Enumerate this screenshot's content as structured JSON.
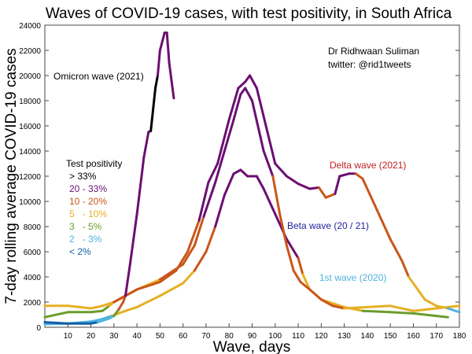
{
  "chart_data": {
    "type": "line",
    "title": "Waves of COVID-19 cases, with test positivity, in South Africa",
    "xlabel": "Wave, days",
    "ylabel": "7-day rolling average COVID-19 cases",
    "xlim": [
      0,
      180
    ],
    "ylim": [
      0,
      24000
    ],
    "xticks": [
      10,
      20,
      30,
      40,
      50,
      60,
      70,
      80,
      90,
      100,
      110,
      120,
      130,
      140,
      150,
      160,
      170,
      180
    ],
    "yticks": [
      0,
      2000,
      4000,
      6000,
      8000,
      10000,
      12000,
      14000,
      16000,
      18000,
      20000,
      22000,
      24000
    ],
    "grid": false,
    "credit": [
      "Dr Ridhwaan Suliman",
      "twitter: @rid1tweets"
    ],
    "legend": {
      "title": "Test positivity",
      "placement": "left",
      "entries": [
        {
          "label": "> 33%",
          "color": "#000000"
        },
        {
          "label": "20 - 33%",
          "color": "#6b0f72"
        },
        {
          "label": "10 - 20%",
          "color": "#c9561a"
        },
        {
          "label": "5   - 10%",
          "color": "#e6b024"
        },
        {
          "label": "3   - 5%",
          "color": "#6b9c2c"
        },
        {
          "label": "2   - 3%",
          "color": "#4fb3de"
        },
        {
          "label": "< 2%",
          "color": "#135fa6"
        }
      ]
    },
    "series": [
      {
        "name": "1st wave (2020)",
        "label_color": "#4fb3de",
        "points": [
          [
            0,
            250,
            5
          ],
          [
            10,
            300,
            5
          ],
          [
            20,
            450,
            5
          ],
          [
            25,
            650,
            5
          ],
          [
            29,
            900,
            3
          ],
          [
            35,
            1300,
            3
          ],
          [
            40,
            1600,
            3
          ],
          [
            50,
            2500,
            3
          ],
          [
            60,
            3500,
            3
          ],
          [
            65,
            4500,
            2
          ],
          [
            70,
            6000,
            2
          ],
          [
            74,
            8000,
            1
          ],
          [
            78,
            10500,
            1
          ],
          [
            82,
            12200,
            1
          ],
          [
            85,
            12500,
            1
          ],
          [
            88,
            12000,
            1
          ],
          [
            92,
            12000,
            1
          ],
          [
            95,
            11000,
            1
          ],
          [
            100,
            9000,
            1
          ],
          [
            105,
            7000,
            1
          ],
          [
            110,
            5500,
            2
          ],
          [
            112,
            4200,
            3
          ],
          [
            115,
            3000,
            3
          ],
          [
            120,
            2200,
            3
          ],
          [
            130,
            1600,
            3
          ],
          [
            138,
            1300,
            4
          ],
          [
            150,
            1200,
            4
          ],
          [
            160,
            1100,
            4
          ],
          [
            170,
            900,
            4
          ],
          [
            175,
            800,
            4
          ]
        ]
      },
      {
        "name": "Beta wave (20 / 21)",
        "label_color": "#1f1f9e",
        "points": [
          [
            0,
            1700,
            3
          ],
          [
            10,
            1700,
            3
          ],
          [
            20,
            1500,
            3
          ],
          [
            25,
            1700,
            3
          ],
          [
            30,
            2000,
            3
          ],
          [
            35,
            2500,
            3
          ],
          [
            40,
            3000,
            3
          ],
          [
            50,
            3800,
            2
          ],
          [
            60,
            5000,
            2
          ],
          [
            65,
            6500,
            2
          ],
          [
            69,
            8800,
            1
          ],
          [
            74,
            11500,
            1
          ],
          [
            78,
            14000,
            1
          ],
          [
            82,
            16500,
            1
          ],
          [
            85,
            18500,
            1
          ],
          [
            87,
            19000,
            1
          ],
          [
            90,
            18000,
            1
          ],
          [
            95,
            14000,
            1
          ],
          [
            99,
            12000,
            2
          ],
          [
            102,
            9000,
            2
          ],
          [
            105,
            6500,
            2
          ],
          [
            108,
            4500,
            2
          ],
          [
            111,
            3600,
            2
          ],
          [
            115,
            3000,
            2
          ],
          [
            120,
            2200,
            2
          ],
          [
            125,
            1700,
            2
          ],
          [
            130,
            1500,
            3
          ],
          [
            140,
            1600,
            3
          ],
          [
            150,
            1700,
            3
          ],
          [
            155,
            1500,
            3
          ],
          [
            160,
            1300,
            3
          ],
          [
            170,
            1500,
            3
          ],
          [
            180,
            1700,
            3
          ]
        ]
      },
      {
        "name": "Delta wave (2021)",
        "label_color": "#c02020",
        "points": [
          [
            0,
            800,
            4
          ],
          [
            10,
            1200,
            4
          ],
          [
            20,
            1200,
            4
          ],
          [
            25,
            1300,
            4
          ],
          [
            28,
            1700,
            3
          ],
          [
            30,
            2000,
            2
          ],
          [
            40,
            3000,
            2
          ],
          [
            50,
            3600,
            2
          ],
          [
            57,
            4500,
            2
          ],
          [
            62,
            6000,
            2
          ],
          [
            67,
            8500,
            1
          ],
          [
            71,
            11500,
            1
          ],
          [
            75,
            13000,
            1
          ],
          [
            80,
            16500,
            1
          ],
          [
            84,
            19000,
            1
          ],
          [
            87,
            19500,
            1
          ],
          [
            89,
            20000,
            1
          ],
          [
            92,
            19000,
            1
          ],
          [
            96,
            16000,
            1
          ],
          [
            100,
            13000,
            1
          ],
          [
            105,
            12000,
            1
          ],
          [
            110,
            11400,
            1
          ],
          [
            115,
            11000,
            1
          ],
          [
            119,
            11100,
            2
          ],
          [
            122,
            10300,
            2
          ],
          [
            126,
            10600,
            1
          ],
          [
            128,
            12000,
            1
          ],
          [
            132,
            12200,
            1
          ],
          [
            135,
            12200,
            2
          ],
          [
            138,
            11800,
            2
          ],
          [
            145,
            9000,
            2
          ],
          [
            150,
            7000,
            2
          ],
          [
            155,
            5300,
            2
          ],
          [
            158,
            4000,
            3
          ],
          [
            165,
            2200,
            3
          ],
          [
            170,
            1700,
            3
          ],
          [
            175,
            1500,
            5
          ],
          [
            180,
            1200,
            5
          ]
        ]
      },
      {
        "name": "Omicron wave (2021)",
        "label_color": "#000000",
        "points": [
          [
            0,
            400,
            6
          ],
          [
            10,
            300,
            6
          ],
          [
            20,
            300,
            6
          ],
          [
            23,
            400,
            5
          ],
          [
            28,
            700,
            5
          ],
          [
            30,
            900,
            4
          ],
          [
            32,
            1400,
            2
          ],
          [
            34,
            2000,
            2
          ],
          [
            35,
            2500,
            1
          ],
          [
            37,
            5000,
            1
          ],
          [
            40,
            9000,
            1
          ],
          [
            43,
            13500,
            1
          ],
          [
            45,
            15500,
            1
          ],
          [
            46,
            15600,
            0
          ],
          [
            48,
            19000,
            0
          ],
          [
            49,
            20000,
            1
          ],
          [
            50,
            22000,
            1
          ],
          [
            52,
            23400,
            1
          ],
          [
            53,
            23400,
            1
          ],
          [
            54,
            21000,
            1
          ],
          [
            56,
            18200,
            1
          ]
        ]
      }
    ]
  }
}
